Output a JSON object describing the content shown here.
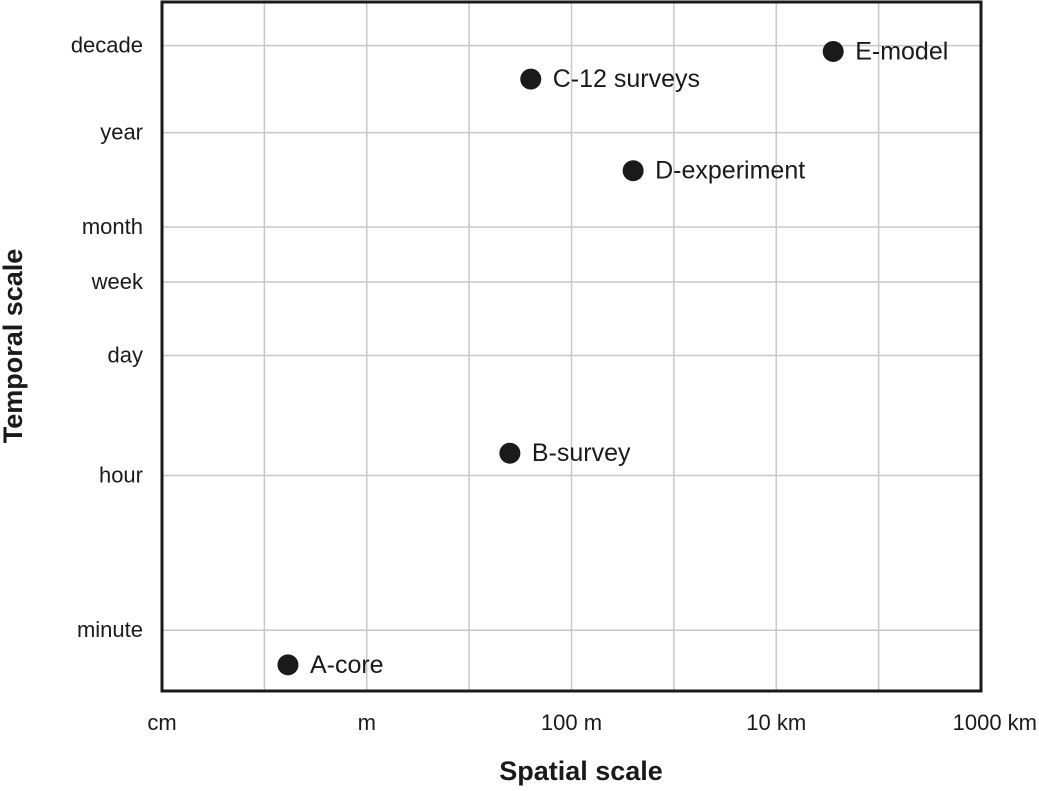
{
  "chart_data": {
    "type": "scatter",
    "xlabel": "Spatial scale",
    "ylabel": "Temporal scale",
    "x_axis": {
      "scale": "log10",
      "units": "m",
      "ticks": [
        {
          "value": 0.01,
          "label": "cm"
        },
        {
          "value": 1,
          "label": "m"
        },
        {
          "value": 100,
          "label": "100 m"
        },
        {
          "value": 10000,
          "label": "10 km"
        },
        {
          "value": 1000000,
          "label": "1000 km"
        }
      ],
      "xlim": [
        0.01,
        1000000
      ]
    },
    "y_axis": {
      "scale": "log10",
      "units": "s",
      "ticks": [
        {
          "value": 60,
          "label": "minute"
        },
        {
          "value": 3600,
          "label": "hour"
        },
        {
          "value": 86400,
          "label": "day"
        },
        {
          "value": 604800,
          "label": "week"
        },
        {
          "value": 2592000,
          "label": "month"
        },
        {
          "value": 31536000,
          "label": "year"
        },
        {
          "value": 315360000,
          "label": "decade"
        }
      ],
      "ylim": [
        12,
        1000000000
      ]
    },
    "grid": true,
    "points": [
      {
        "label": "A-core",
        "x": 0.17,
        "y": 24
      },
      {
        "label": "B-survey",
        "x": 25,
        "y": 6500
      },
      {
        "label": "C-12 surveys",
        "x": 40,
        "y": 130000000
      },
      {
        "label": "D-experiment",
        "x": 400,
        "y": 11500000
      },
      {
        "label": "E-model",
        "x": 36000,
        "y": 270000000
      }
    ]
  }
}
